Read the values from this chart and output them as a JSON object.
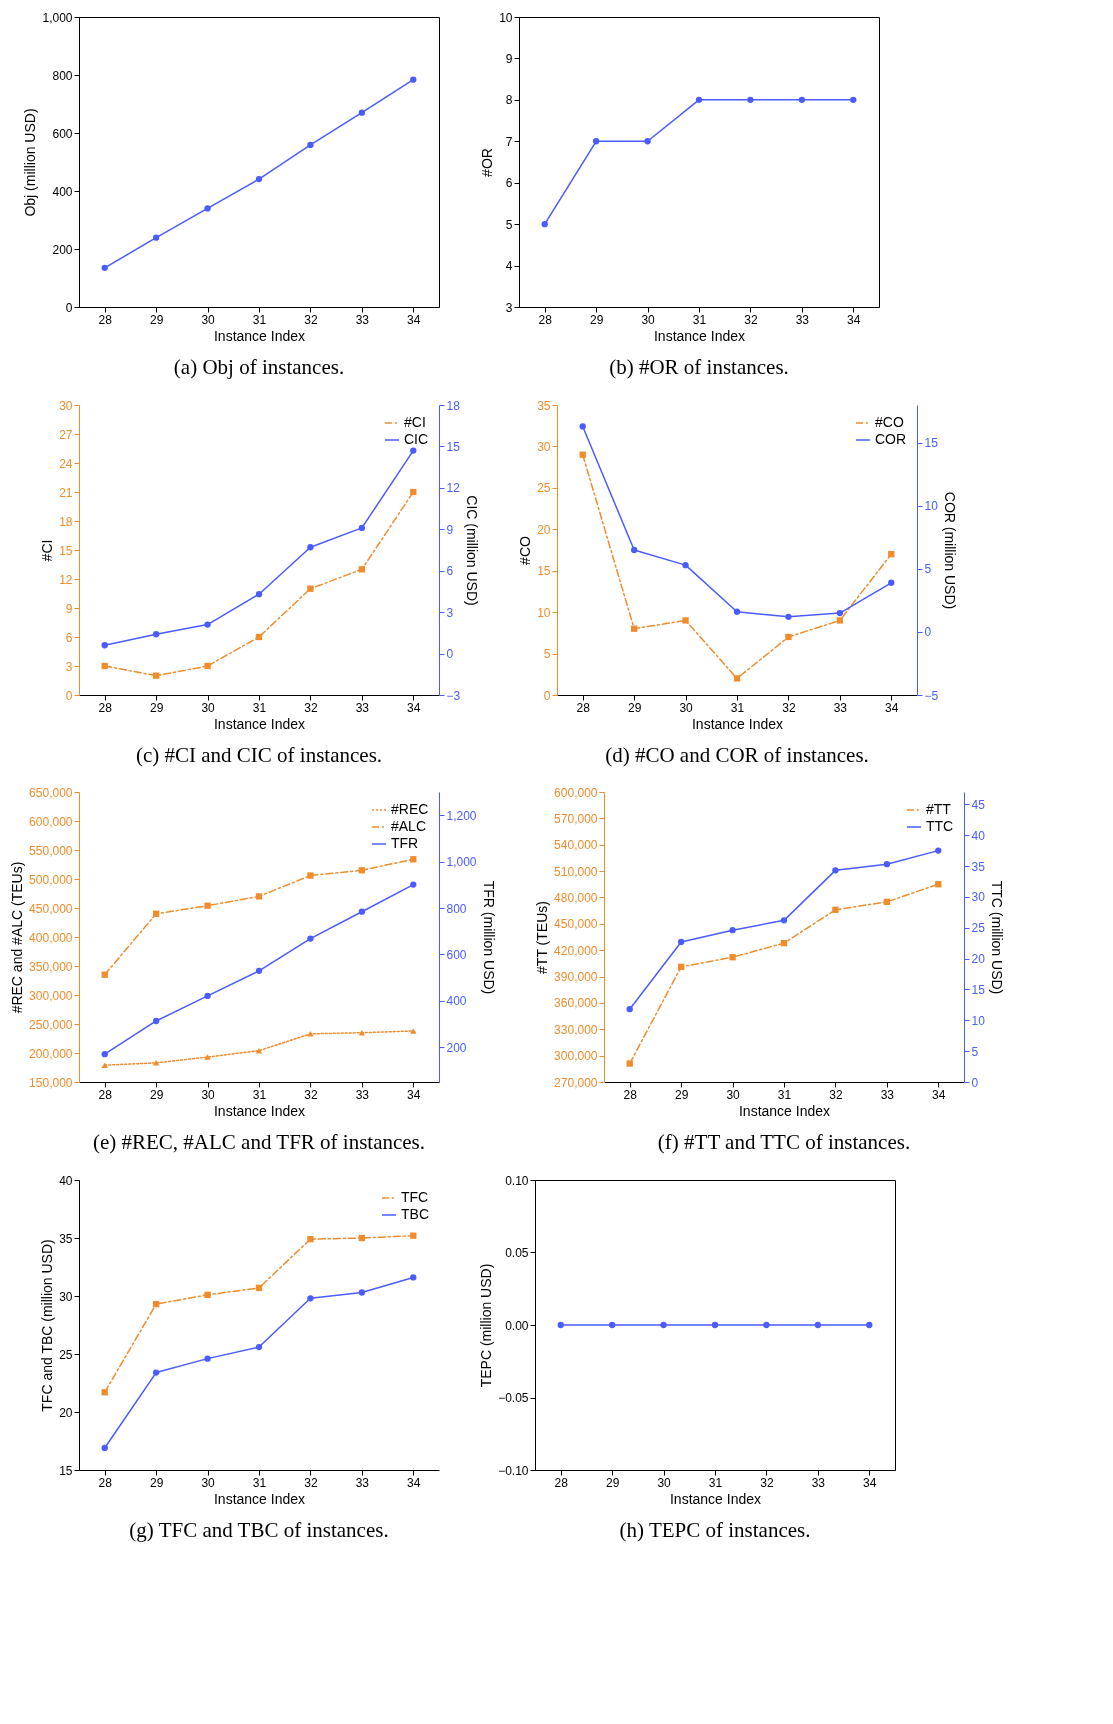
{
  "chart_data": [
    {
      "type": "line",
      "title": "(a) Obj of instances.",
      "xlabel": "Instance Index",
      "ylabel": "Obj (million USD)",
      "categories": [
        "28",
        "29",
        "30",
        "31",
        "32",
        "33",
        "34"
      ],
      "ylim": [
        0,
        1000
      ],
      "yticks": [
        0,
        200,
        400,
        600,
        800,
        {
          "value": 1000,
          "label": "1,000"
        }
      ],
      "series": [
        {
          "color": "#4a5cff",
          "marker": "circle",
          "line_style": "solid",
          "values": [
            135,
            239,
            340,
            441,
            559,
            670,
            784
          ]
        }
      ]
    },
    {
      "type": "line",
      "title": "(b) #OR of instances.",
      "xlabel": "Instance Index",
      "ylabel": "#OR",
      "categories": [
        "28",
        "29",
        "30",
        "31",
        "32",
        "33",
        "34"
      ],
      "ylim": [
        3,
        10
      ],
      "yticks": [
        3,
        4,
        5,
        6,
        7,
        8,
        9,
        10
      ],
      "series": [
        {
          "color": "#4a5cff",
          "marker": "circle",
          "line_style": "solid",
          "values": [
            5,
            7,
            7,
            8,
            8,
            8,
            8
          ]
        }
      ]
    },
    {
      "type": "line",
      "title": "(c) #CI and CIC of instances.",
      "xlabel": "Instance Index",
      "ylabel": "#CI",
      "y2label": "CIC (million USD)",
      "categories": [
        "28",
        "29",
        "30",
        "31",
        "32",
        "33",
        "34"
      ],
      "ylim": [
        0,
        30
      ],
      "yticks": [
        0,
        3,
        6,
        9,
        12,
        15,
        18,
        21,
        24,
        27,
        30
      ],
      "y2lim": [
        -3,
        18
      ],
      "y2ticks": [
        -3,
        0,
        3,
        6,
        9,
        12,
        15,
        18
      ],
      "legend": "top right",
      "series": [
        {
          "name": "#CI",
          "color": "#f08c2c",
          "marker": "square",
          "line_style": "dashed",
          "values": [
            3,
            2,
            3,
            6,
            11,
            13,
            21
          ]
        },
        {
          "name": "CIC",
          "color": "#4a5cff",
          "marker": "circle",
          "line_style": "solid",
          "axis": "y2",
          "values": [
            0.6,
            1.4,
            2.1,
            4.3,
            7.7,
            9.1,
            14.7
          ]
        }
      ]
    },
    {
      "type": "line",
      "title": "(d) #CO and COR of instances.",
      "xlabel": "Instance Index",
      "ylabel": "#CO",
      "y2label": "COR (million USD)",
      "categories": [
        "28",
        "29",
        "30",
        "31",
        "32",
        "33",
        "34"
      ],
      "ylim": [
        0,
        35
      ],
      "yticks": [
        0,
        5,
        10,
        15,
        20,
        25,
        30,
        35
      ],
      "y2lim": [
        -5,
        18
      ],
      "y2ticks": [
        -5,
        0,
        5,
        10,
        15
      ],
      "legend": "top right",
      "series": [
        {
          "name": "#CO",
          "color": "#f08c2c",
          "marker": "square",
          "line_style": "dashed",
          "values": [
            29,
            8,
            9,
            2,
            7,
            9,
            17
          ]
        },
        {
          "name": "COR",
          "color": "#4a5cff",
          "marker": "circle",
          "line_style": "solid",
          "axis": "y2",
          "values": [
            16.3,
            6.5,
            5.3,
            1.6,
            1.2,
            1.5,
            3.9
          ]
        }
      ]
    },
    {
      "type": "line",
      "title": "(e) #REC, #ALC and TFR of instances.",
      "xlabel": "Instance Index",
      "ylabel": "#REC and #ALC (TEUs)",
      "y2label": "TFR (million USD)",
      "categories": [
        "28",
        "29",
        "30",
        "31",
        "32",
        "33",
        "34"
      ],
      "ylim": [
        150000,
        650000
      ],
      "yticks": [
        {
          "value": 150000,
          "label": "150,000"
        },
        {
          "value": 200000,
          "label": "200,000"
        },
        {
          "value": 250000,
          "label": "250,000"
        },
        {
          "value": 300000,
          "label": "300,000"
        },
        {
          "value": 350000,
          "label": "350,000"
        },
        {
          "value": 400000,
          "label": "400,000"
        },
        {
          "value": 450000,
          "label": "450,000"
        },
        {
          "value": 500000,
          "label": "500,000"
        },
        {
          "value": 550000,
          "label": "550,000"
        },
        {
          "value": 600000,
          "label": "600,000"
        },
        {
          "value": 650000,
          "label": "650,000"
        }
      ],
      "y2lim": [
        50,
        1300
      ],
      "y2ticks": [
        200,
        400,
        600,
        800,
        {
          "value": 1000,
          "label": "1,000"
        },
        {
          "value": 1200,
          "label": "1,200"
        }
      ],
      "legend": "top right",
      "series": [
        {
          "name": "#REC",
          "color": "#f08c2c",
          "marker": "triangle",
          "line_style": "dotted",
          "values": [
            179000,
            183000,
            193000,
            204000,
            233000,
            235000,
            238000
          ]
        },
        {
          "name": "#ALC",
          "color": "#f08c2c",
          "marker": "square",
          "line_style": "dashed",
          "values": [
            335000,
            440000,
            454000,
            470000,
            506000,
            515000,
            534000
          ]
        },
        {
          "name": "TFR",
          "color": "#4a5cff",
          "marker": "circle",
          "line_style": "solid",
          "axis": "y2",
          "values": [
            170,
            313,
            421,
            529,
            668,
            784,
            901
          ]
        }
      ]
    },
    {
      "type": "line",
      "title": "(f) #TT and TTC of instances.",
      "xlabel": "Instance Index",
      "ylabel": "#TT (TEUs)",
      "y2label": "TTC (million USD)",
      "categories": [
        "28",
        "29",
        "30",
        "31",
        "32",
        "33",
        "34"
      ],
      "ylim": [
        270000,
        600000
      ],
      "yticks": [
        {
          "value": 270000,
          "label": "270,000"
        },
        {
          "value": 300000,
          "label": "300,000"
        },
        {
          "value": 330000,
          "label": "330,000"
        },
        {
          "value": 360000,
          "label": "360,000"
        },
        {
          "value": 390000,
          "label": "390,000"
        },
        {
          "value": 420000,
          "label": "420,000"
        },
        {
          "value": 450000,
          "label": "450,000"
        },
        {
          "value": 480000,
          "label": "480,000"
        },
        {
          "value": 510000,
          "label": "510,000"
        },
        {
          "value": 540000,
          "label": "540,000"
        },
        {
          "value": 570000,
          "label": "570,000"
        },
        {
          "value": 600000,
          "label": "600,000"
        }
      ],
      "y2lim": [
        0,
        47
      ],
      "y2ticks": [
        0,
        5,
        10,
        15,
        20,
        25,
        30,
        35,
        40,
        45
      ],
      "legend": "top right",
      "series": [
        {
          "name": "#TT",
          "color": "#f08c2c",
          "marker": "square",
          "line_style": "dashed",
          "values": [
            291000,
            401000,
            412000,
            428000,
            466000,
            475000,
            495000
          ]
        },
        {
          "name": "TTC",
          "color": "#4a5cff",
          "marker": "circle",
          "line_style": "solid",
          "axis": "y2",
          "values": [
            11.8,
            22.7,
            24.6,
            26.2,
            34.3,
            35.3,
            37.5
          ]
        }
      ]
    },
    {
      "type": "line",
      "title": "(g) TFC and TBC of instances.",
      "xlabel": "Instance Index",
      "ylabel": "TFC and TBC (million USD)",
      "categories": [
        "28",
        "29",
        "30",
        "31",
        "32",
        "33",
        "34"
      ],
      "ylim": [
        15,
        40
      ],
      "yticks": [
        15,
        20,
        25,
        30,
        35,
        40
      ],
      "legend": "top right",
      "series": [
        {
          "name": "TFC",
          "color": "#f08c2c",
          "marker": "square",
          "line_style": "dashed",
          "values": [
            21.7,
            29.3,
            30.1,
            30.7,
            34.9,
            35.0,
            35.2
          ]
        },
        {
          "name": "TBC",
          "color": "#4a5cff",
          "marker": "circle",
          "line_style": "solid",
          "values": [
            16.9,
            23.4,
            24.6,
            25.6,
            29.8,
            30.3,
            31.6
          ]
        }
      ]
    },
    {
      "type": "line",
      "title": "(h) TEPC of instances.",
      "xlabel": "Instance Index",
      "ylabel": "TEPC (million USD)",
      "categories": [
        "28",
        "29",
        "30",
        "31",
        "32",
        "33",
        "34"
      ],
      "ylim": [
        -0.1,
        0.1
      ],
      "yticks": [
        {
          "value": -0.1,
          "label": "−0.10"
        },
        {
          "value": -0.05,
          "label": "−0.05"
        },
        {
          "value": 0,
          "label": "0.00"
        },
        {
          "value": 0.05,
          "label": "0.05"
        },
        {
          "value": 0.1,
          "label": "0.10"
        }
      ],
      "series": [
        {
          "color": "#4a5cff",
          "marker": "circle",
          "line_style": "solid",
          "values": [
            0,
            0,
            0,
            0,
            0,
            0,
            0
          ]
        }
      ]
    }
  ]
}
